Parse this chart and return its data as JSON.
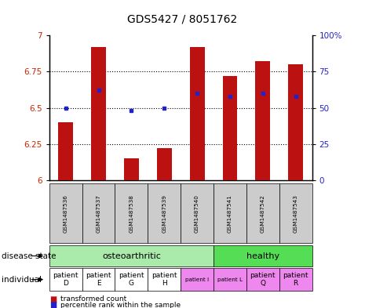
{
  "title": "GDS5427 / 8051762",
  "samples": [
    "GSM1487536",
    "GSM1487537",
    "GSM1487538",
    "GSM1487539",
    "GSM1487540",
    "GSM1487541",
    "GSM1487542",
    "GSM1487543"
  ],
  "red_values": [
    6.4,
    6.92,
    6.15,
    6.22,
    6.92,
    6.72,
    6.82,
    6.8
  ],
  "blue_values": [
    50,
    62,
    48,
    50,
    60,
    58,
    60,
    58
  ],
  "ylim": [
    6.0,
    7.0
  ],
  "yticks_left": [
    6.0,
    6.25,
    6.5,
    6.75,
    7.0
  ],
  "ytick_left_labels": [
    "6",
    "6.25",
    "6.5",
    "6.75",
    "7"
  ],
  "yticks_right": [
    0,
    25,
    50,
    75,
    100
  ],
  "ytick_right_labels": [
    "0",
    "25",
    "50",
    "75",
    "100%"
  ],
  "osteo_color": "#AAEAAA",
  "healthy_color": "#55DD55",
  "ind_white_color": "#FFFFFF",
  "ind_pink_color": "#EE88EE",
  "bar_color": "#BB1111",
  "dot_color": "#2222CC",
  "background_gray": "#CCCCCC",
  "left_label_color": "#CC2200",
  "right_label_color": "#2222CC",
  "grid_color": "#555555",
  "ind_labels_0_3": [
    "patient\nD",
    "patient\nE",
    "patient\nG",
    "patient\nH"
  ],
  "ind_labels_4": "patient I",
  "ind_labels_5": "patient L",
  "ind_labels_6_7": [
    "patient\nQ",
    "patient\nR"
  ]
}
